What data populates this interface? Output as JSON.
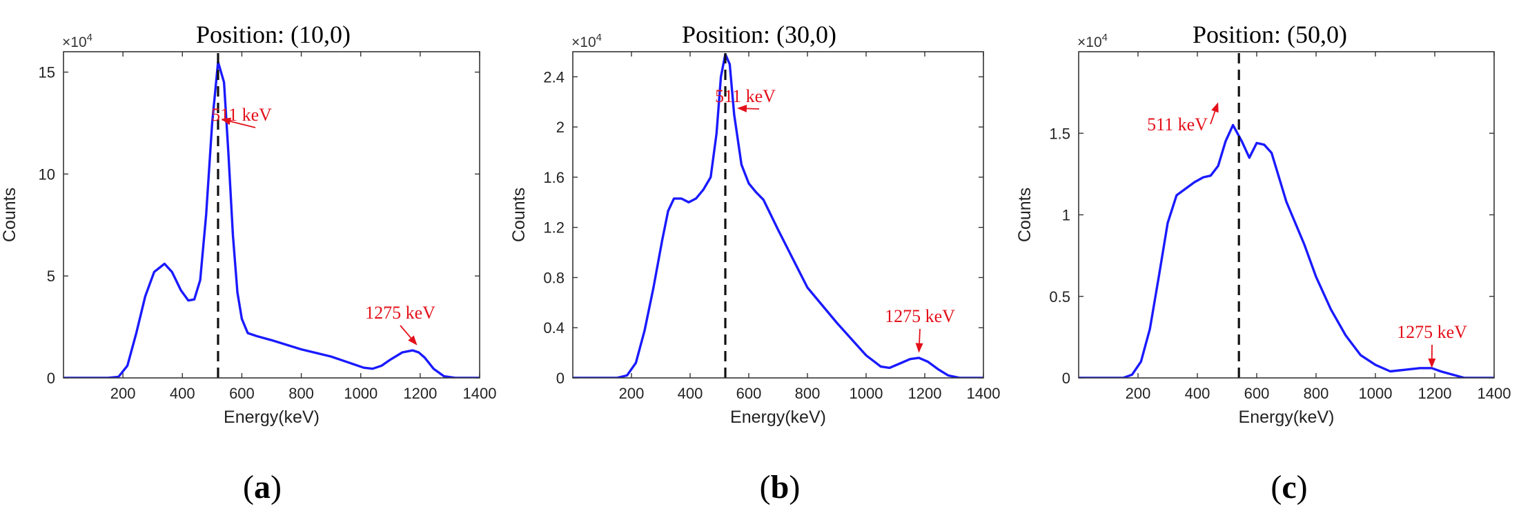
{
  "chart_data": [
    {
      "type": "line",
      "title": "Position: (10,0)",
      "xlabel": "Energy(keV)",
      "ylabel": "Counts",
      "exponent_label": "×10",
      "exponent_power": "4",
      "xlim": [
        0,
        1400
      ],
      "ylim": [
        0,
        16
      ],
      "x_ticks": [
        200,
        400,
        600,
        800,
        1000,
        1200,
        1400
      ],
      "x_tick_labels": [
        "200",
        "400",
        "600",
        "800",
        "1000",
        "1200",
        "1400"
      ],
      "y_ticks": [
        0,
        5,
        10,
        15
      ],
      "y_tick_labels": [
        "0",
        "5",
        "10",
        "15"
      ],
      "vline_x": 520,
      "subfigure_label": "a",
      "series": [
        {
          "name": "spectrum",
          "color": "#1a1aff",
          "x": [
            0,
            150,
            185,
            215,
            245,
            275,
            305,
            340,
            365,
            395,
            420,
            440,
            460,
            480,
            500,
            520,
            540,
            555,
            570,
            585,
            600,
            620,
            650,
            700,
            800,
            900,
            960,
            1010,
            1040,
            1070,
            1100,
            1140,
            1175,
            1195,
            1215,
            1245,
            1280,
            1320,
            1400
          ],
          "values": [
            0,
            0,
            0.05,
            0.6,
            2.2,
            4.0,
            5.2,
            5.6,
            5.2,
            4.3,
            3.8,
            3.85,
            4.8,
            8.0,
            12.5,
            15.5,
            14.5,
            11.0,
            7.0,
            4.2,
            2.9,
            2.2,
            2.05,
            1.85,
            1.4,
            1.05,
            0.75,
            0.5,
            0.45,
            0.6,
            0.9,
            1.25,
            1.35,
            1.25,
            1.0,
            0.45,
            0.08,
            0,
            0
          ]
        }
      ],
      "annotations": [
        {
          "text": "511 keV",
          "target_x": 530,
          "target_y": 12.7
        },
        {
          "text": "1275 keV",
          "target_x": 1190,
          "target_y": 1.6
        }
      ]
    },
    {
      "type": "line",
      "title": "Position: (30,0)",
      "xlabel": "Energy(keV)",
      "ylabel": "Counts",
      "exponent_label": "×10",
      "exponent_power": "4",
      "xlim": [
        0,
        1400
      ],
      "ylim": [
        0,
        2.6
      ],
      "x_ticks": [
        200,
        400,
        600,
        800,
        1000,
        1200,
        1400
      ],
      "x_tick_labels": [
        "200",
        "400",
        "600",
        "800",
        "1000",
        "1200",
        "1400"
      ],
      "y_ticks": [
        0,
        0.4,
        0.8,
        1.2,
        1.6,
        2.0,
        2.4
      ],
      "y_tick_labels": [
        "0",
        "0.4",
        "0.8",
        "1.2",
        "1.6",
        "2",
        "2.4"
      ],
      "vline_x": 520,
      "subfigure_label": "b",
      "series": [
        {
          "name": "spectrum",
          "color": "#1a1aff",
          "x": [
            0,
            150,
            185,
            215,
            245,
            275,
            305,
            325,
            345,
            370,
            395,
            420,
            445,
            470,
            490,
            505,
            520,
            535,
            550,
            575,
            600,
            625,
            650,
            700,
            800,
            900,
            1000,
            1050,
            1080,
            1110,
            1150,
            1180,
            1210,
            1245,
            1280,
            1320,
            1400
          ],
          "values": [
            0,
            0,
            0.02,
            0.12,
            0.38,
            0.72,
            1.1,
            1.33,
            1.43,
            1.43,
            1.4,
            1.43,
            1.5,
            1.6,
            1.95,
            2.4,
            2.58,
            2.5,
            2.1,
            1.7,
            1.55,
            1.48,
            1.42,
            1.18,
            0.72,
            0.44,
            0.18,
            0.09,
            0.08,
            0.11,
            0.15,
            0.16,
            0.13,
            0.07,
            0.02,
            0,
            0
          ]
        }
      ],
      "annotations": [
        {
          "text": "511 keV",
          "target_x": 560,
          "target_y": 2.15
        },
        {
          "text": "1275 keV",
          "target_x": 1180,
          "target_y": 0.2
        }
      ]
    },
    {
      "type": "line",
      "title": "Position: (50,0)",
      "xlabel": "Energy(keV)",
      "ylabel": "Counts",
      "exponent_label": "×10",
      "exponent_power": "4",
      "xlim": [
        0,
        1400
      ],
      "ylim": [
        0,
        2.0
      ],
      "x_ticks": [
        200,
        400,
        600,
        800,
        1000,
        1200,
        1400
      ],
      "x_tick_labels": [
        "200",
        "400",
        "600",
        "800",
        "1000",
        "1200",
        "1400"
      ],
      "y_ticks": [
        0,
        0.5,
        1.0,
        1.5
      ],
      "y_tick_labels": [
        "0",
        "0.5",
        "1",
        "1.5"
      ],
      "vline_x": 540,
      "subfigure_label": "c",
      "series": [
        {
          "name": "spectrum",
          "color": "#1a1aff",
          "x": [
            0,
            150,
            180,
            210,
            240,
            270,
            300,
            330,
            360,
            390,
            420,
            445,
            470,
            495,
            520,
            550,
            575,
            600,
            625,
            650,
            700,
            760,
            800,
            850,
            900,
            950,
            1000,
            1050,
            1100,
            1150,
            1190,
            1220,
            1260,
            1300,
            1400
          ],
          "values": [
            0,
            0,
            0.02,
            0.1,
            0.3,
            0.62,
            0.95,
            1.12,
            1.16,
            1.2,
            1.23,
            1.24,
            1.3,
            1.45,
            1.55,
            1.45,
            1.35,
            1.44,
            1.43,
            1.38,
            1.08,
            0.82,
            0.62,
            0.42,
            0.26,
            0.14,
            0.08,
            0.04,
            0.05,
            0.06,
            0.06,
            0.04,
            0.02,
            0,
            0
          ]
        }
      ],
      "annotations": [
        {
          "text": "511 keV",
          "target_x": 470,
          "target_y": 1.69,
          "arrow_direction": "right"
        },
        {
          "text": "1275 keV",
          "target_x": 1190,
          "target_y": 0.06
        }
      ]
    }
  ]
}
